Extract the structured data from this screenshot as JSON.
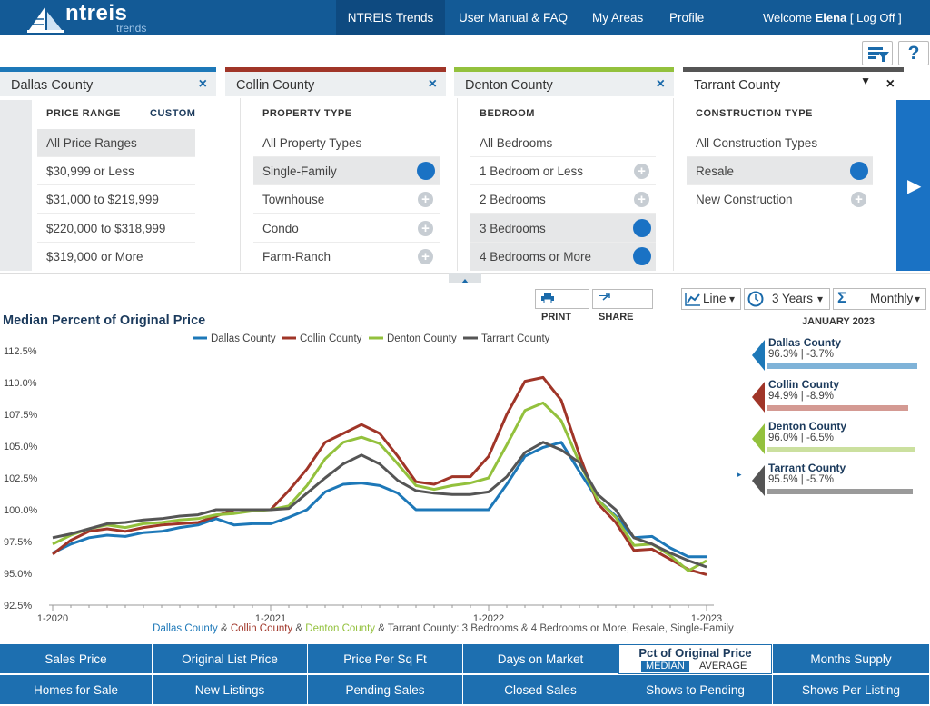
{
  "nav": {
    "logo_word": "ntreis",
    "logo_sub": "trends",
    "trends": "NTREIS Trends",
    "manual": "User Manual & FAQ",
    "areas": "My Areas",
    "profile": "Profile",
    "welcome_prefix": "Welcome ",
    "welcome_user": "Elena",
    "logout": " [ Log Off ]",
    "help": "?"
  },
  "tabs": [
    {
      "label": "Dallas County",
      "close": "×"
    },
    {
      "label": "Collin County",
      "close": "×"
    },
    {
      "label": "Denton County",
      "close": "×"
    },
    {
      "label": "Tarrant County",
      "close": "×",
      "caret": "▼"
    }
  ],
  "filters": {
    "price": {
      "heading": "PRICE RANGE",
      "custom": "CUSTOM",
      "options": [
        "All Price Ranges",
        "$30,999 or Less",
        "$31,000 to $219,999",
        "$220,000 to $318,999",
        "$319,000 or More"
      ]
    },
    "property": {
      "heading": "PROPERTY TYPE",
      "options": [
        "All Property Types",
        "Single-Family",
        "Townhouse",
        "Condo",
        "Farm-Ranch"
      ]
    },
    "bedroom": {
      "heading": "BEDROOM",
      "options": [
        "All Bedrooms",
        "1 Bedroom or Less",
        "2 Bedrooms",
        "3 Bedrooms",
        "4 Bedrooms or More"
      ]
    },
    "construction": {
      "heading": "CONSTRUCTION TYPE",
      "options": [
        "All Construction Types",
        "Resale",
        "New Construction"
      ]
    },
    "plus_glyph": "+",
    "next_glyph": "▶"
  },
  "controls": {
    "print": "PRINT",
    "share": "SHARE",
    "chart_type": "Line",
    "range": "3 Years",
    "sigma": "Σ",
    "aggregate": "Monthly",
    "caret": "▾"
  },
  "colors": {
    "dallas": "#1d78b8",
    "collin": "#a03528",
    "denton": "#93c13d",
    "tarrant": "#555555"
  },
  "chart_data": {
    "type": "line",
    "title": "Median Percent of Original Price",
    "ylabel": "",
    "xlabel": "",
    "ylim": [
      92.5,
      112.5
    ],
    "yticks": [
      "112.5%",
      "110.0%",
      "107.5%",
      "105.0%",
      "102.5%",
      "100.0%",
      "97.5%",
      "95.0%",
      "92.5%"
    ],
    "xticks": [
      "1-2020",
      "1-2021",
      "1-2022",
      "1-2023"
    ],
    "x": [
      "1-2020",
      "2-2020",
      "3-2020",
      "4-2020",
      "5-2020",
      "6-2020",
      "7-2020",
      "8-2020",
      "9-2020",
      "10-2020",
      "11-2020",
      "12-2020",
      "1-2021",
      "2-2021",
      "3-2021",
      "4-2021",
      "5-2021",
      "6-2021",
      "7-2021",
      "8-2021",
      "9-2021",
      "10-2021",
      "11-2021",
      "12-2021",
      "1-2022",
      "2-2022",
      "3-2022",
      "4-2022",
      "5-2022",
      "6-2022",
      "7-2022",
      "8-2022",
      "9-2022",
      "10-2022",
      "11-2022",
      "12-2022",
      "1-2023"
    ],
    "legend_position": "top",
    "grid": false,
    "series": [
      {
        "name": "Dallas County",
        "values": [
          96.6,
          97.3,
          97.8,
          98.0,
          97.9,
          98.2,
          98.3,
          98.6,
          98.8,
          99.3,
          98.8,
          98.9,
          98.9,
          99.4,
          100.0,
          101.4,
          102.0,
          102.1,
          101.9,
          101.3,
          100.0,
          100.0,
          100.0,
          100.0,
          100.0,
          102.0,
          104.2,
          104.9,
          105.3,
          103.0,
          100.8,
          99.5,
          97.8,
          97.9,
          97.0,
          96.3,
          96.3
        ]
      },
      {
        "name": "Collin County",
        "values": [
          96.5,
          97.6,
          98.3,
          98.5,
          98.3,
          98.6,
          98.8,
          98.9,
          99.0,
          99.5,
          100.0,
          100.0,
          100.0,
          101.5,
          103.2,
          105.3,
          106.0,
          106.7,
          106.0,
          104.2,
          102.2,
          102.0,
          102.6,
          102.6,
          104.2,
          107.5,
          110.1,
          110.4,
          108.6,
          104.3,
          100.5,
          99.0,
          96.8,
          96.9,
          96.1,
          95.3,
          94.9
        ]
      },
      {
        "name": "Denton County",
        "values": [
          97.3,
          98.0,
          98.5,
          98.8,
          98.6,
          98.9,
          99.0,
          99.2,
          99.3,
          99.6,
          99.7,
          99.9,
          100.0,
          100.3,
          101.9,
          104.0,
          105.3,
          105.7,
          105.2,
          103.6,
          101.9,
          101.6,
          101.9,
          102.1,
          102.5,
          105.1,
          107.8,
          108.4,
          107.0,
          103.7,
          100.8,
          99.4,
          97.2,
          97.3,
          96.4,
          95.2,
          96.0
        ]
      },
      {
        "name": "Tarrant County",
        "values": [
          97.8,
          98.1,
          98.5,
          98.9,
          99.0,
          99.2,
          99.3,
          99.5,
          99.6,
          100.0,
          100.0,
          100.0,
          100.0,
          100.1,
          101.3,
          102.5,
          103.6,
          104.3,
          103.6,
          102.3,
          101.5,
          101.3,
          101.2,
          101.2,
          101.4,
          102.6,
          104.5,
          105.3,
          104.7,
          103.7,
          101.2,
          100.0,
          97.8,
          97.3,
          96.6,
          96.0,
          95.5
        ]
      }
    ],
    "caption": {
      "dallas": "Dallas County",
      "amp1": " & ",
      "collin": "Collin County",
      "amp2": " & ",
      "denton": "Denton County",
      "rest": " & Tarrant County: 3 Bedrooms & 4 Bedrooms or More, Resale, Single-Family"
    }
  },
  "side": {
    "date": "JANUARY 2023",
    "items": [
      {
        "name": "Dallas County",
        "value": "96.3% | -3.7%"
      },
      {
        "name": "Collin County",
        "value": "94.9% | -8.9%"
      },
      {
        "name": "Denton County",
        "value": "96.0% | -6.5%"
      },
      {
        "name": "Tarrant County",
        "value": "95.5% | -5.7%"
      }
    ],
    "arrow": "▸"
  },
  "bottom": {
    "row1": [
      "Sales Price",
      "Original List Price",
      "Price Per Sq Ft",
      "Days on Market",
      "Pct of Original Price",
      "Months Supply"
    ],
    "row2": [
      "Homes for Sale",
      "New Listings",
      "Pending Sales",
      "Closed Sales",
      "Shows to Pending",
      "Shows Per Listing"
    ],
    "active_median": "MEDIAN",
    "active_average": "AVERAGE"
  }
}
